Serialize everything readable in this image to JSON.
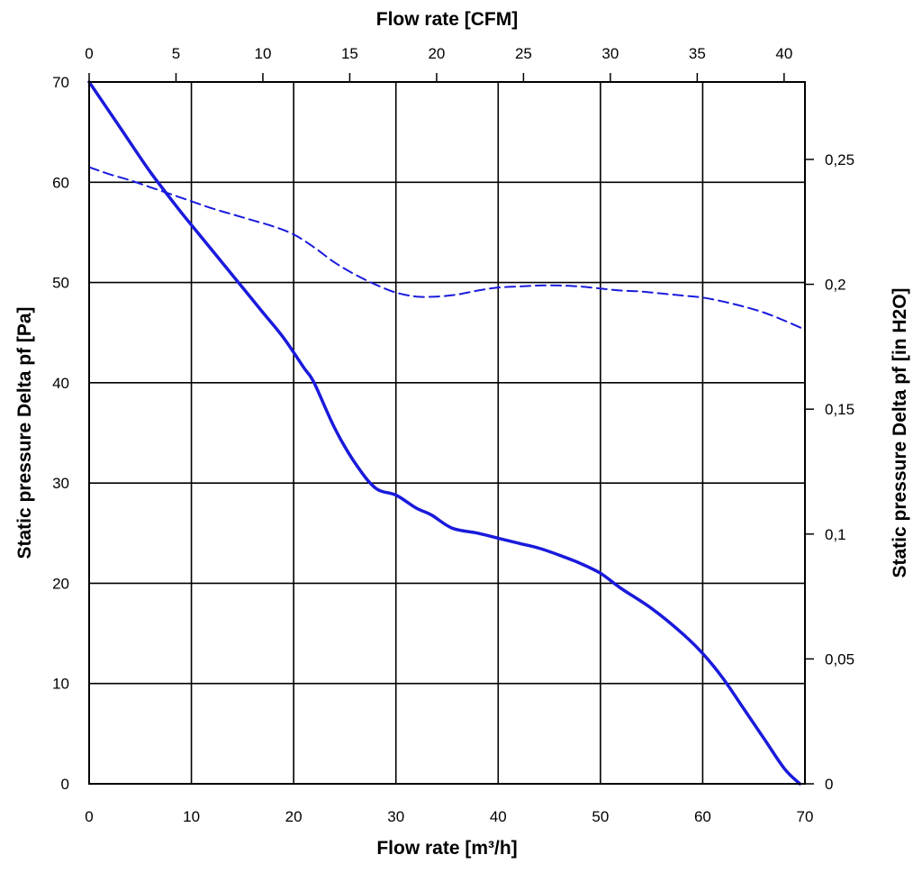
{
  "chart_data": {
    "type": "line",
    "title": "",
    "xlabel": "Flow rate [m³/h]",
    "x2label": "Flow rate [CFM]",
    "ylabel": "Static pressure Delta pf [Pa]",
    "y2label": "Static pressure Delta pf [in H2O]",
    "xlim": [
      0,
      70
    ],
    "ylim": [
      0,
      70
    ],
    "x2lim": [
      0,
      41.2
    ],
    "y2lim": [
      0,
      0.281
    ],
    "xticks": [
      "0",
      "10",
      "20",
      "30",
      "40",
      "50",
      "60",
      "70"
    ],
    "x2ticks": [
      "0",
      "5",
      "10",
      "15",
      "20",
      "25",
      "30",
      "35",
      "40"
    ],
    "yticks": [
      "0",
      "10",
      "20",
      "30",
      "40",
      "50",
      "60",
      "70"
    ],
    "y2ticks": [
      "0",
      "0,05",
      "0,1",
      "0,15",
      "0,2",
      "0,25"
    ],
    "grid": true,
    "line_color": "#1a1adc",
    "series": [
      {
        "style": "solid",
        "x": [
          0,
          3,
          6,
          9,
          11,
          13,
          15,
          17,
          19,
          21,
          22,
          24,
          26,
          28,
          30,
          32,
          33.5,
          35.5,
          38,
          40,
          42,
          44,
          46,
          48,
          50,
          52,
          55,
          58,
          60,
          62,
          64,
          66,
          68,
          69.5
        ],
        "y": [
          70,
          65.5,
          61,
          57,
          54.5,
          52,
          49.5,
          47,
          44.5,
          41.5,
          40,
          35.5,
          32,
          29.5,
          28.8,
          27.5,
          26.8,
          25.5,
          25,
          24.5,
          24,
          23.5,
          22.8,
          22,
          21,
          19.5,
          17.5,
          15,
          13,
          10.5,
          7.5,
          4.5,
          1.5,
          0
        ]
      },
      {
        "style": "dashed",
        "x": [
          0,
          2,
          4,
          6,
          8,
          10,
          12,
          14,
          16,
          18,
          20,
          22,
          24,
          26,
          28,
          30,
          32,
          34,
          36,
          38,
          40,
          42,
          44,
          46,
          48,
          50,
          52,
          54,
          56,
          58,
          60,
          62,
          64,
          66,
          68,
          70
        ],
        "y": [
          61.5,
          60.8,
          60.2,
          59.5,
          58.8,
          58.1,
          57.4,
          56.8,
          56.2,
          55.6,
          54.8,
          53.5,
          52,
          50.8,
          49.8,
          49,
          48.6,
          48.6,
          48.8,
          49.2,
          49.5,
          49.6,
          49.7,
          49.7,
          49.6,
          49.4,
          49.2,
          49.1,
          48.9,
          48.7,
          48.5,
          48.1,
          47.6,
          47,
          46.2,
          45.3
        ]
      }
    ]
  }
}
